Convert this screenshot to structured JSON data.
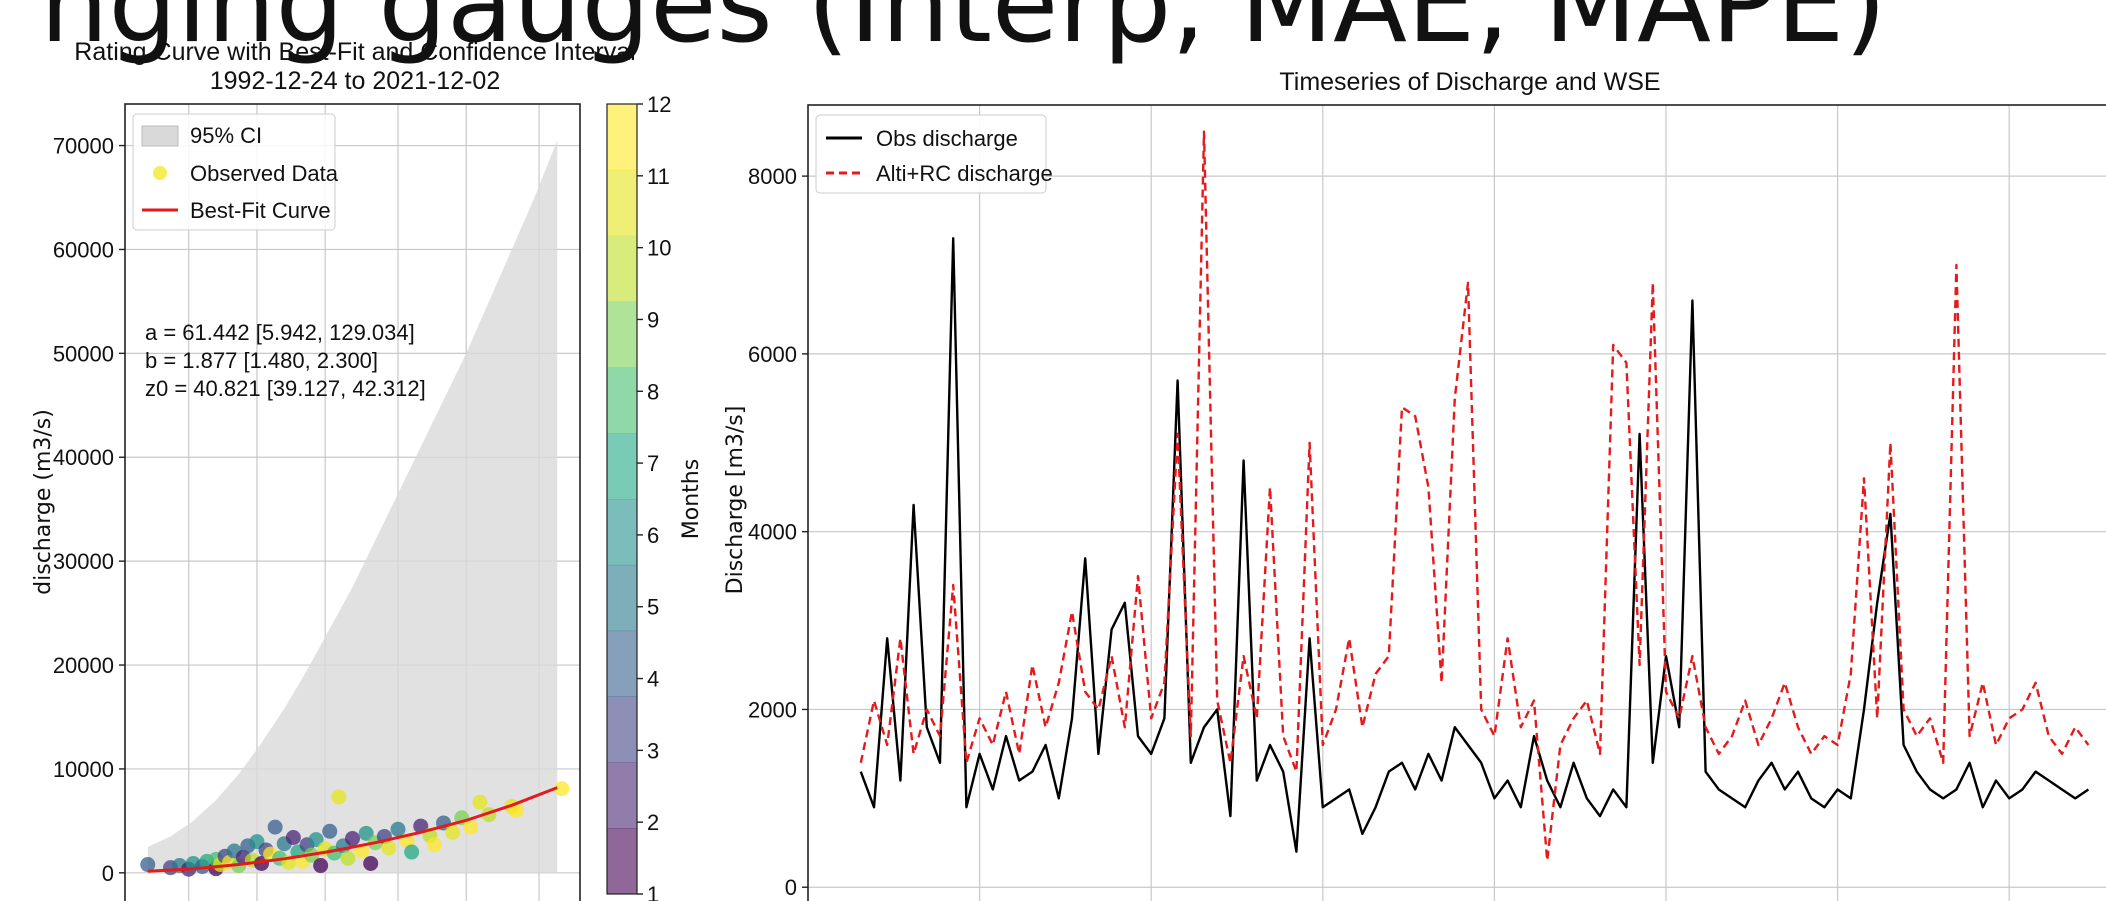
{
  "heading_partial": "nging gauges (Interp, MAE, MAPE)",
  "chart_data": [
    {
      "type": "scatter",
      "title": "Rating Curve with Best-Fit and Confidence Interval",
      "subtitle": "1992-12-24 to 2021-12-02",
      "xlabel": "",
      "ylabel": "discharge (m3/s)",
      "ylim": [
        -3000,
        74000
      ],
      "xlim": [
        0,
        100
      ],
      "yticks": [
        0,
        10000,
        20000,
        30000,
        40000,
        50000,
        60000,
        70000
      ],
      "ytick_labels": [
        "0",
        "10000",
        "20000",
        "30000",
        "40000",
        "50000",
        "60000",
        "70000"
      ],
      "xgrid_positions": [
        14,
        29,
        44,
        60,
        75,
        91
      ],
      "grid": true,
      "legend": {
        "placement": "top-left",
        "items": [
          {
            "label": "95% CI",
            "kind": "patch",
            "color": "#d9d9d9"
          },
          {
            "label": "Observed Data",
            "kind": "dot",
            "color": "#f1e51d"
          },
          {
            "label": "Best-Fit Curve",
            "kind": "line",
            "color": "#e41a1c"
          }
        ]
      },
      "annotation_lines": [
        "a = 61.442 [5.942, 129.034]",
        "b = 1.877 [1.480, 2.300]",
        "z0 = 40.821 [39.127, 42.312]"
      ],
      "ci_band": {
        "x": [
          5,
          10,
          15,
          20,
          25,
          30,
          35,
          40,
          45,
          50,
          55,
          60,
          65,
          70,
          75,
          80,
          85,
          90,
          95
        ],
        "upper": [
          2500,
          3500,
          5000,
          7000,
          9500,
          12500,
          15800,
          19500,
          23500,
          27500,
          32000,
          36500,
          41000,
          45500,
          50000,
          55000,
          60000,
          65000,
          70500
        ],
        "lower": [
          0,
          0,
          0,
          0,
          0,
          0,
          0,
          0,
          0,
          0,
          0,
          0,
          0,
          0,
          0,
          0,
          0,
          0,
          0
        ]
      },
      "best_fit": {
        "x": [
          5,
          15,
          25,
          35,
          45,
          55,
          65,
          75,
          85,
          95
        ],
        "y": [
          150,
          380,
          800,
          1350,
          2050,
          2900,
          3900,
          5050,
          6500,
          8200
        ]
      },
      "scatter_points": [
        {
          "x": 5,
          "y": 800,
          "month": 4
        },
        {
          "x": 10,
          "y": 500,
          "month": 3
        },
        {
          "x": 12,
          "y": 700,
          "month": 5
        },
        {
          "x": 14,
          "y": 350,
          "month": 2
        },
        {
          "x": 15,
          "y": 900,
          "month": 6
        },
        {
          "x": 17,
          "y": 600,
          "month": 4
        },
        {
          "x": 18,
          "y": 1100,
          "month": 7
        },
        {
          "x": 20,
          "y": 400,
          "month": 1
        },
        {
          "x": 20,
          "y": 1300,
          "month": 8
        },
        {
          "x": 21,
          "y": 800,
          "month": 11
        },
        {
          "x": 22,
          "y": 1600,
          "month": 3
        },
        {
          "x": 23,
          "y": 1000,
          "month": 12
        },
        {
          "x": 24,
          "y": 2100,
          "month": 5
        },
        {
          "x": 25,
          "y": 700,
          "month": 9
        },
        {
          "x": 26,
          "y": 1500,
          "month": 2
        },
        {
          "x": 27,
          "y": 2600,
          "month": 4
        },
        {
          "x": 28,
          "y": 1200,
          "month": 10
        },
        {
          "x": 29,
          "y": 3000,
          "month": 6
        },
        {
          "x": 30,
          "y": 900,
          "month": 1
        },
        {
          "x": 31,
          "y": 2200,
          "month": 3
        },
        {
          "x": 32,
          "y": 1800,
          "month": 12
        },
        {
          "x": 33,
          "y": 4400,
          "month": 4
        },
        {
          "x": 34,
          "y": 1400,
          "month": 8
        },
        {
          "x": 35,
          "y": 2800,
          "month": 5
        },
        {
          "x": 36,
          "y": 1000,
          "month": 11
        },
        {
          "x": 37,
          "y": 3400,
          "month": 2
        },
        {
          "x": 38,
          "y": 2000,
          "month": 7
        },
        {
          "x": 39,
          "y": 1100,
          "month": 12
        },
        {
          "x": 40,
          "y": 2700,
          "month": 3
        },
        {
          "x": 41,
          "y": 1700,
          "month": 9
        },
        {
          "x": 42,
          "y": 3200,
          "month": 6
        },
        {
          "x": 43,
          "y": 700,
          "month": 1
        },
        {
          "x": 44,
          "y": 2300,
          "month": 11
        },
        {
          "x": 45,
          "y": 4000,
          "month": 4
        },
        {
          "x": 46,
          "y": 1900,
          "month": 8
        },
        {
          "x": 47,
          "y": 7300,
          "month": 11
        },
        {
          "x": 48,
          "y": 2600,
          "month": 5
        },
        {
          "x": 49,
          "y": 1400,
          "month": 10
        },
        {
          "x": 50,
          "y": 3300,
          "month": 2
        },
        {
          "x": 52,
          "y": 2100,
          "month": 12
        },
        {
          "x": 53,
          "y": 3800,
          "month": 6
        },
        {
          "x": 54,
          "y": 900,
          "month": 1
        },
        {
          "x": 55,
          "y": 2900,
          "month": 9
        },
        {
          "x": 57,
          "y": 3500,
          "month": 3
        },
        {
          "x": 58,
          "y": 2400,
          "month": 11
        },
        {
          "x": 60,
          "y": 4200,
          "month": 5
        },
        {
          "x": 62,
          "y": 3100,
          "month": 12
        },
        {
          "x": 63,
          "y": 2000,
          "month": 7
        },
        {
          "x": 65,
          "y": 4500,
          "month": 2
        },
        {
          "x": 67,
          "y": 3600,
          "month": 10
        },
        {
          "x": 68,
          "y": 2700,
          "month": 12
        },
        {
          "x": 70,
          "y": 4800,
          "month": 4
        },
        {
          "x": 72,
          "y": 3900,
          "month": 11
        },
        {
          "x": 74,
          "y": 5300,
          "month": 9
        },
        {
          "x": 76,
          "y": 4400,
          "month": 12
        },
        {
          "x": 78,
          "y": 6800,
          "month": 11
        },
        {
          "x": 80,
          "y": 5600,
          "month": 10
        },
        {
          "x": 85,
          "y": 6400,
          "month": 11
        },
        {
          "x": 86,
          "y": 6000,
          "month": 12
        },
        {
          "x": 96,
          "y": 8100,
          "month": 12
        }
      ]
    },
    {
      "type": "colorbar",
      "label": "Months",
      "range": [
        1,
        12
      ],
      "ticks": [
        "1",
        "2",
        "3",
        "4",
        "5",
        "6",
        "7",
        "8",
        "9",
        "10",
        "11",
        "12"
      ],
      "colors": [
        "#440154",
        "#482475",
        "#414487",
        "#355f8d",
        "#2a788e",
        "#21918c",
        "#22a884",
        "#44bf70",
        "#7ad151",
        "#bddf26",
        "#e4e419",
        "#fde725"
      ]
    },
    {
      "type": "line",
      "title": "Timeseries of Discharge and WSE",
      "xlabel": "",
      "ylabel": "Discharge [m3/s]",
      "ylim": [
        -200,
        8800
      ],
      "xlim": [
        0,
        100
      ],
      "yticks": [
        0,
        2000,
        4000,
        6000,
        8000
      ],
      "ytick_labels": [
        "0",
        "2000",
        "4000",
        "6000",
        "8000"
      ],
      "xgrid_positions": [
        13,
        26,
        39,
        52,
        65,
        78,
        91
      ],
      "grid": true,
      "legend": {
        "placement": "top-left",
        "items": [
          {
            "label": "Obs discharge",
            "style": "solid",
            "color": "#000000"
          },
          {
            "label": "Alti+RC discharge",
            "style": "dashed",
            "color": "#e41a1c"
          }
        ]
      },
      "series": [
        {
          "style": "solid",
          "color": "#000000",
          "x": [
            4,
            5,
            6,
            7,
            8,
            9,
            10,
            11,
            12,
            13,
            14,
            15,
            16,
            17,
            18,
            19,
            20,
            21,
            22,
            23,
            24,
            25,
            26,
            27,
            28,
            29,
            30,
            31,
            32,
            33,
            34,
            35,
            36,
            37,
            38,
            39,
            40,
            41,
            42,
            43,
            44,
            45,
            46,
            47,
            48,
            49,
            50,
            51,
            52,
            53,
            54,
            55,
            56,
            57,
            58,
            59,
            60,
            61,
            62,
            63,
            64,
            65,
            66,
            67,
            68,
            69,
            70,
            71,
            72,
            73,
            74,
            75,
            76,
            77,
            78,
            79,
            80,
            81,
            82,
            83,
            84,
            85,
            86,
            87,
            88,
            89,
            90,
            91,
            92,
            93,
            94,
            95,
            96,
            97
          ],
          "y": [
            1300,
            900,
            2800,
            1200,
            4300,
            1800,
            1400,
            7300,
            900,
            1500,
            1100,
            1700,
            1200,
            1300,
            1600,
            1000,
            1900,
            3700,
            1500,
            2900,
            3200,
            1700,
            1500,
            1900,
            5700,
            1400,
            1800,
            2000,
            800,
            4800,
            1200,
            1600,
            1300,
            400,
            2800,
            900,
            1000,
            1100,
            600,
            900,
            1300,
            1400,
            1100,
            1500,
            1200,
            1800,
            1600,
            1400,
            1000,
            1200,
            900,
            1700,
            1200,
            900,
            1400,
            1000,
            800,
            1100,
            900,
            5100,
            1400,
            2600,
            1800,
            6600,
            1300,
            1100,
            1000,
            900,
            1200,
            1400,
            1100,
            1300,
            1000,
            900,
            1100,
            1000,
            2000,
            3200,
            4200,
            1600,
            1300,
            1100,
            1000,
            1100,
            1400,
            900,
            1200,
            1000,
            1100,
            1300,
            1200,
            1100,
            1000,
            1100
          ]
        },
        {
          "style": "dashed",
          "color": "#e41a1c",
          "x": [
            4,
            5,
            6,
            7,
            8,
            9,
            10,
            11,
            12,
            13,
            14,
            15,
            16,
            17,
            18,
            19,
            20,
            21,
            22,
            23,
            24,
            25,
            26,
            27,
            28,
            29,
            30,
            31,
            32,
            33,
            34,
            35,
            36,
            37,
            38,
            39,
            40,
            41,
            42,
            43,
            44,
            45,
            46,
            47,
            48,
            49,
            50,
            51,
            52,
            53,
            54,
            55,
            56,
            57,
            58,
            59,
            60,
            61,
            62,
            63,
            64,
            65,
            66,
            67,
            68,
            69,
            70,
            71,
            72,
            73,
            74,
            75,
            76,
            77,
            78,
            79,
            80,
            81,
            82,
            83,
            84,
            85,
            86,
            87,
            88,
            89,
            90,
            91,
            92,
            93,
            94,
            95,
            96,
            97
          ],
          "y": [
            1400,
            2100,
            1600,
            2800,
            1500,
            2000,
            1700,
            3400,
            1400,
            1900,
            1600,
            2200,
            1500,
            2500,
            1800,
            2300,
            3100,
            2200,
            2000,
            2600,
            1800,
            3500,
            1900,
            2300,
            5100,
            1700,
            8500,
            2100,
            1400,
            2600,
            1900,
            4500,
            1700,
            1300,
            5000,
            1600,
            2000,
            2800,
            1800,
            2400,
            2600,
            5400,
            5300,
            4500,
            2300,
            5500,
            6800,
            2000,
            1700,
            2800,
            1800,
            2100,
            300,
            1600,
            1900,
            2100,
            1500,
            6100,
            5900,
            2500,
            6800,
            2200,
            1900,
            2600,
            1800,
            1500,
            1700,
            2100,
            1600,
            1900,
            2300,
            1800,
            1500,
            1700,
            1600,
            2400,
            4600,
            1900,
            5000,
            2000,
            1700,
            1900,
            1400,
            7000,
            1700,
            2300,
            1600,
            1900,
            2000,
            2300,
            1700,
            1500,
            1800,
            1600
          ]
        }
      ]
    }
  ]
}
